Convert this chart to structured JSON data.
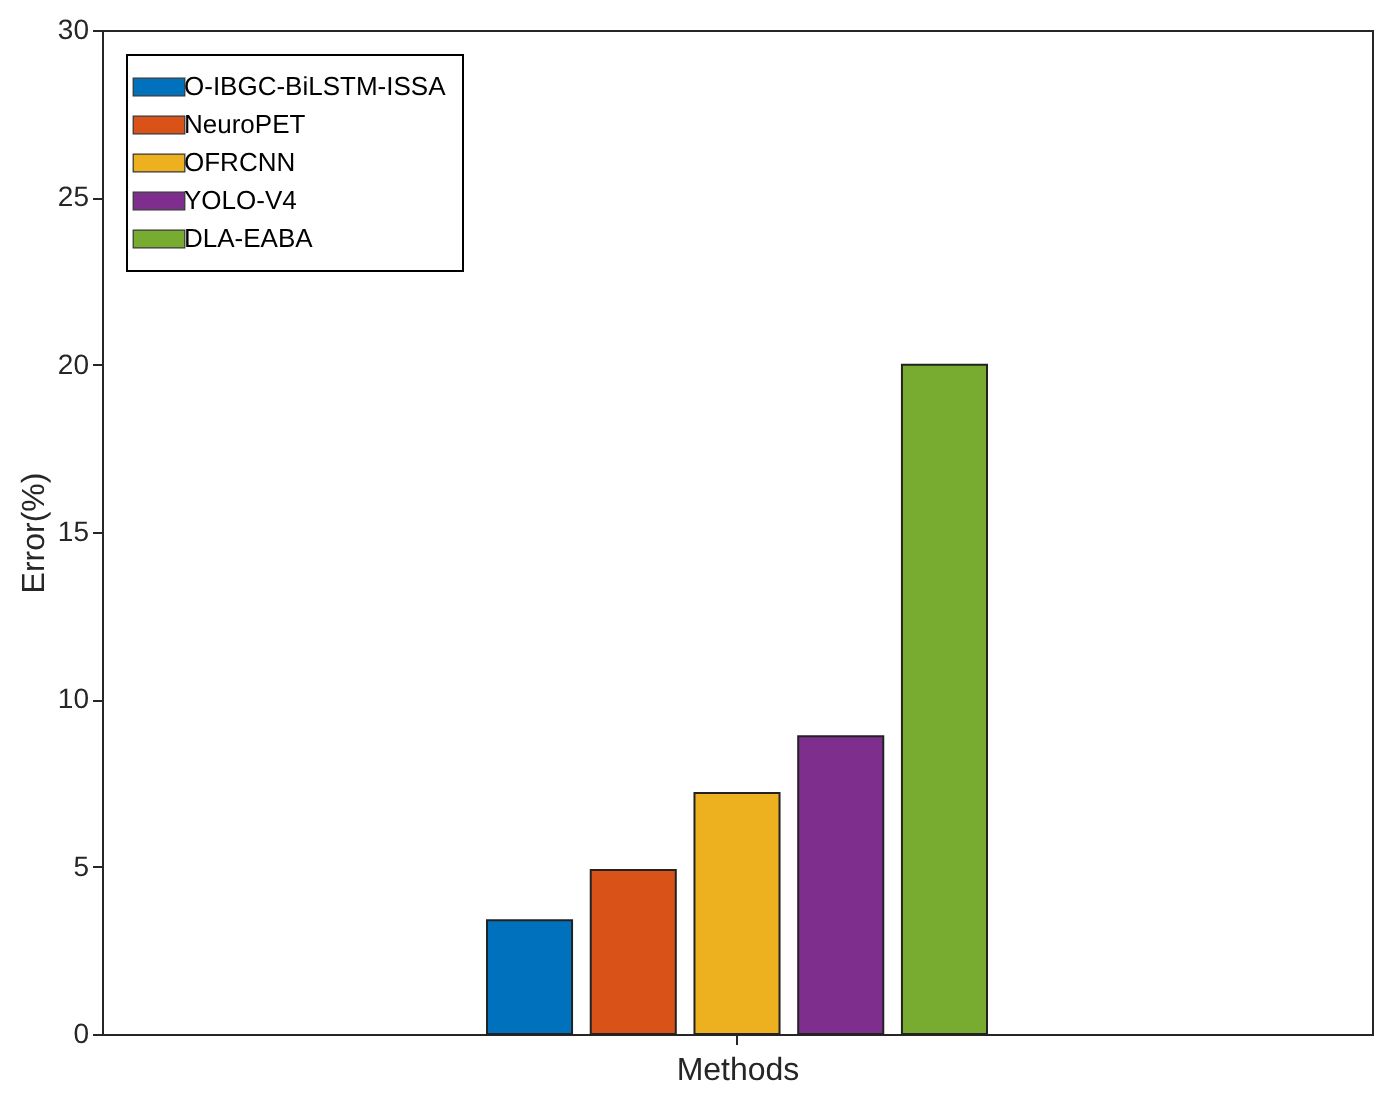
{
  "chart_data": {
    "type": "bar",
    "categories": [
      null
    ],
    "xlabel": "Methods",
    "ylabel": "Error(%)",
    "series": [
      {
        "name": "O-IBGC-BiLSTM-ISSA",
        "color": "#0072bd",
        "values": [
          3.4
        ]
      },
      {
        "name": "NeuroPET",
        "color": "#d95319",
        "values": [
          4.9
        ]
      },
      {
        "name": "OFRCNN",
        "color": "#edb120",
        "values": [
          7.2
        ]
      },
      {
        "name": "YOLO-V4",
        "color": "#7e2f8e",
        "values": [
          8.9
        ]
      },
      {
        "name": "DLA-EABA",
        "color": "#77ac30",
        "values": [
          20
        ]
      }
    ],
    "ylim": [
      0,
      30
    ],
    "yticks": [
      0,
      5,
      10,
      15,
      20,
      25,
      30
    ],
    "grid": false,
    "legend": "top left",
    "tick_labels": "y"
  }
}
